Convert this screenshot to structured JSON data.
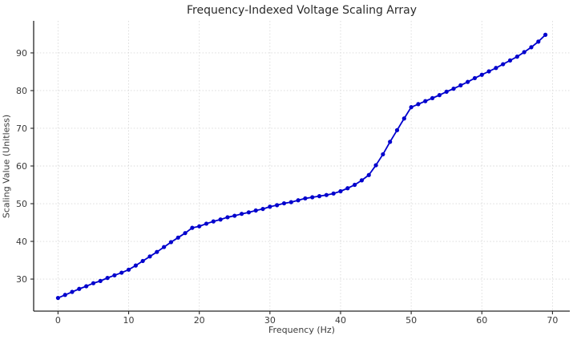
{
  "chart_data": {
    "type": "line",
    "title": "Frequency-Indexed Voltage Scaling Array",
    "xlabel": "Frequency (Hz)",
    "ylabel": "Scaling Value (Unitless)",
    "x": [
      0,
      1,
      2,
      3,
      4,
      5,
      6,
      7,
      8,
      9,
      10,
      11,
      12,
      13,
      14,
      15,
      16,
      17,
      18,
      19,
      20,
      21,
      22,
      23,
      24,
      25,
      26,
      27,
      28,
      29,
      30,
      31,
      32,
      33,
      34,
      35,
      36,
      37,
      38,
      39,
      40,
      41,
      42,
      43,
      44,
      45,
      46,
      47,
      48,
      49,
      50,
      51,
      52,
      53,
      54,
      55,
      56,
      57,
      58,
      59,
      60,
      61,
      62,
      63,
      64,
      65,
      66,
      67,
      68,
      69
    ],
    "values": [
      25.0,
      25.8,
      26.6,
      27.4,
      28.1,
      28.9,
      29.5,
      30.3,
      31.0,
      31.7,
      32.5,
      33.6,
      34.8,
      36.0,
      37.2,
      38.5,
      39.8,
      41.0,
      42.2,
      43.6,
      44.0,
      44.7,
      45.3,
      45.8,
      46.4,
      46.8,
      47.3,
      47.7,
      48.2,
      48.6,
      49.2,
      49.6,
      50.1,
      50.4,
      50.9,
      51.4,
      51.7,
      52.0,
      52.3,
      52.7,
      53.3,
      54.1,
      55.0,
      56.2,
      57.6,
      60.2,
      63.1,
      66.4,
      69.5,
      72.6,
      75.6,
      76.4,
      77.2,
      78.0,
      78.8,
      79.7,
      80.5,
      81.4,
      82.3,
      83.3,
      84.2,
      85.1,
      86.0,
      87.0,
      88.0,
      89.0,
      90.2,
      91.5,
      93.0,
      94.8
    ],
    "xticks": [
      0,
      10,
      20,
      30,
      40,
      50,
      60,
      70
    ],
    "yticks": [
      30,
      40,
      50,
      60,
      70,
      80,
      90
    ],
    "xlim": [
      -3.45,
      72.45
    ],
    "ylim": [
      21.5,
      98.5
    ],
    "grid": true,
    "legend": "none",
    "line_color": "#0000CD",
    "marker": "circle",
    "grid_color": "#d8d8d8",
    "spine_color": "#262626",
    "tick_color": "#3b3b3b"
  }
}
